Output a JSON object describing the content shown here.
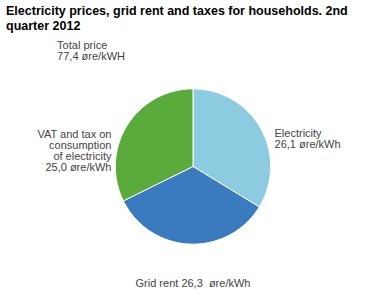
{
  "chart_data": {
    "type": "pie",
    "title": "Electricity prices, grid rent and taxes for households. 2nd quarter 2012",
    "categories": [
      "Electricity\n26,1 øre/kWh",
      "Grid rent 26,3  øre/kWh",
      "VAT and tax on\nconsumption\nof electricity\n25,0 øre/kWh"
    ],
    "values": [
      26.1,
      26.3,
      25.0
    ],
    "colors": [
      "#8dcce0",
      "#3a7abf",
      "#5aab3c"
    ],
    "annotations": [
      "Total price\n77,4 øre/kWH"
    ]
  }
}
